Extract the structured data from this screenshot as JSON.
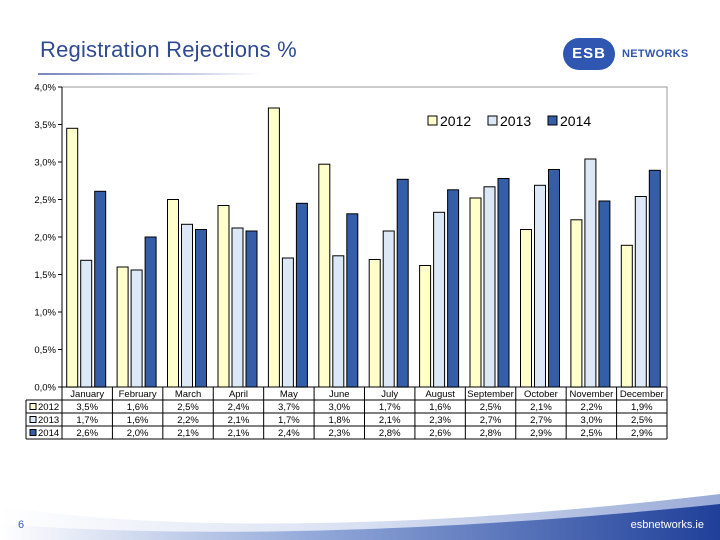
{
  "slide": {
    "title": "Registration Rejections %",
    "logo_badge": "ESB",
    "logo_text": "NETWORKS",
    "page_number": "6",
    "site": "esbnetworks.ie"
  },
  "colors": {
    "s2012": "#ffffcc",
    "s2013": "#dde8f6",
    "s2014": "#345ea8",
    "title": "#2f4a92"
  },
  "chart_data": {
    "type": "bar",
    "title": "Registration Rejections %",
    "xlabel": "",
    "ylabel": "",
    "ylim": [
      0,
      4.0
    ],
    "y_ticks": [
      0,
      0.5,
      1.0,
      1.5,
      2.0,
      2.5,
      3.0,
      3.5,
      4.0
    ],
    "y_tick_labels": [
      "0,0%",
      "0,5%",
      "1,0%",
      "1,5%",
      "2,0%",
      "2,5%",
      "3,0%",
      "3,5%",
      "4,0%"
    ],
    "grid": false,
    "legend_position": "top-right",
    "categories": [
      "January",
      "February",
      "March",
      "April",
      "May",
      "June",
      "July",
      "August",
      "September",
      "October",
      "November",
      "December"
    ],
    "series": [
      {
        "name": "2012",
        "values": [
          3.45,
          1.6,
          2.5,
          2.42,
          3.72,
          2.97,
          1.7,
          1.62,
          2.52,
          2.1,
          2.23,
          1.89
        ],
        "labels": [
          "3,5%",
          "1,6%",
          "2,5%",
          "2,4%",
          "3,7%",
          "3,0%",
          "1,7%",
          "1,6%",
          "2,5%",
          "2,1%",
          "2,2%",
          "1,9%"
        ]
      },
      {
        "name": "2013",
        "values": [
          1.69,
          1.56,
          2.17,
          2.12,
          1.72,
          1.75,
          2.08,
          2.33,
          2.67,
          2.69,
          3.04,
          2.54
        ],
        "labels": [
          "1,7%",
          "1,6%",
          "2,2%",
          "2,1%",
          "1,7%",
          "1,8%",
          "2,1%",
          "2,3%",
          "2,7%",
          "2,7%",
          "3,0%",
          "2,5%"
        ]
      },
      {
        "name": "2014",
        "values": [
          2.61,
          2.0,
          2.1,
          2.08,
          2.45,
          2.31,
          2.77,
          2.63,
          2.78,
          2.9,
          2.48,
          2.89
        ],
        "labels": [
          "2,6%",
          "2,0%",
          "2,1%",
          "2,1%",
          "2,4%",
          "2,3%",
          "2,8%",
          "2,6%",
          "2,8%",
          "2,9%",
          "2,5%",
          "2,9%"
        ]
      }
    ]
  }
}
